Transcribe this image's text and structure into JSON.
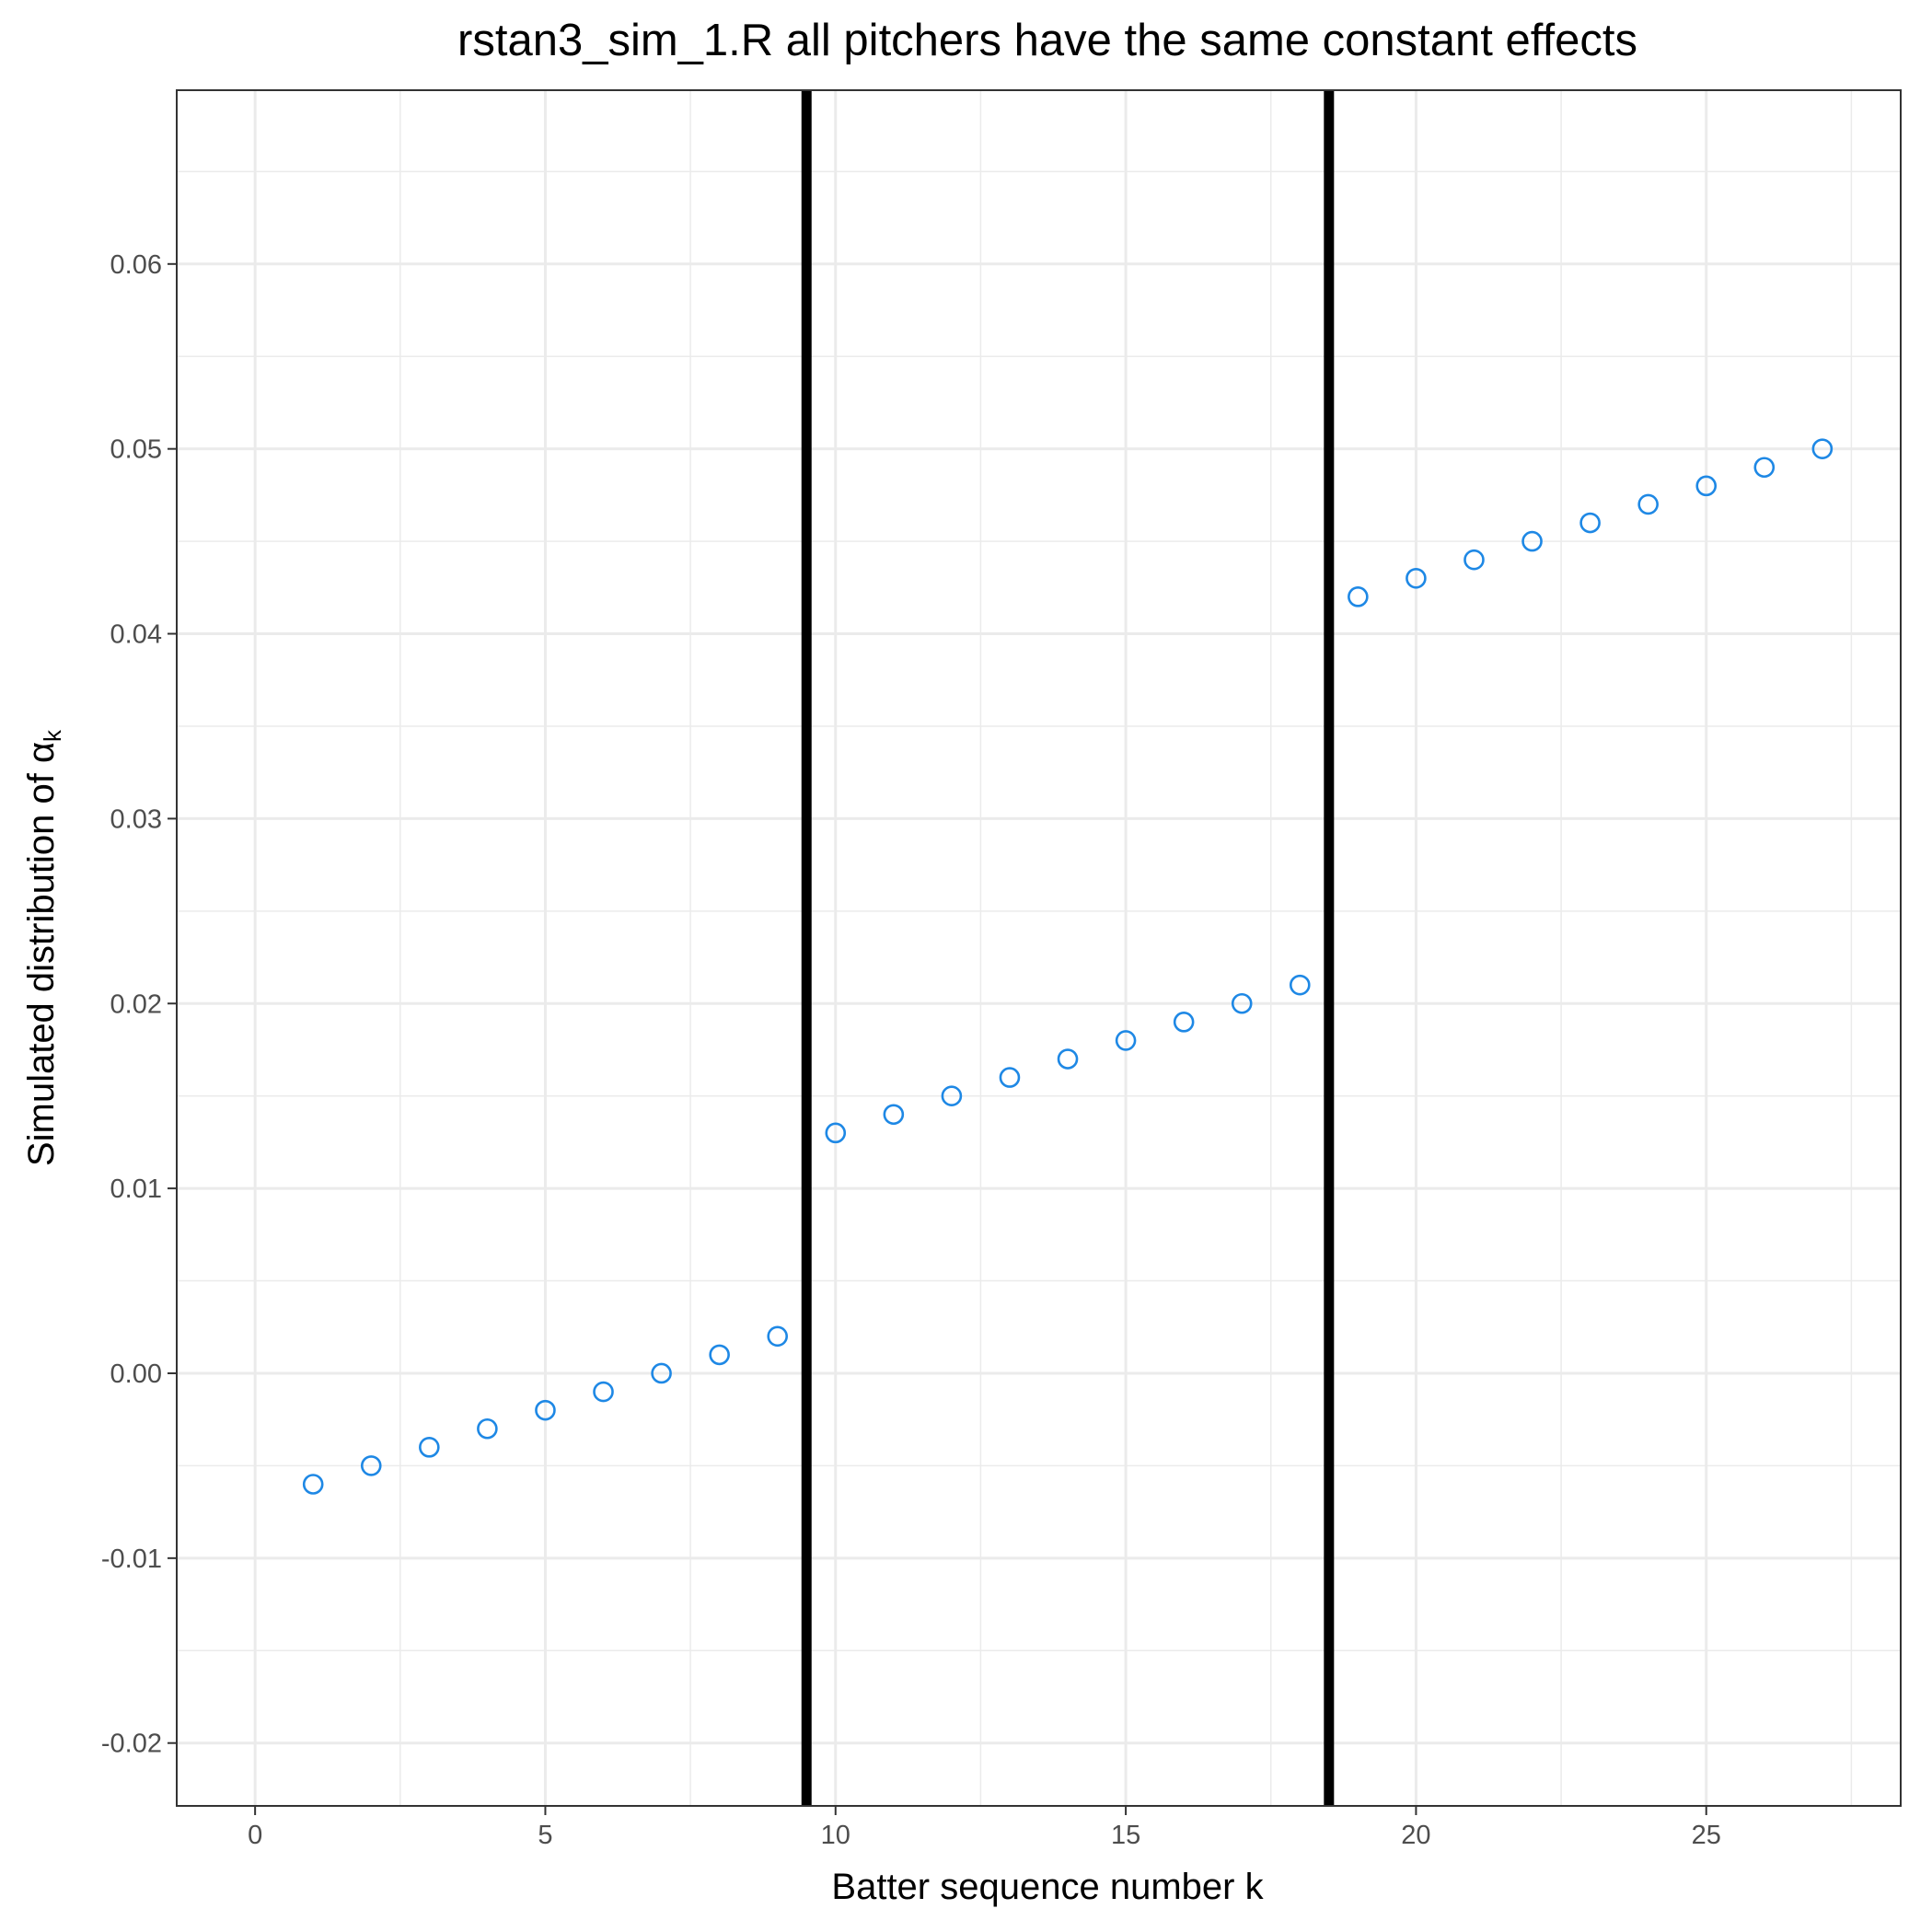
{
  "chart_data": {
    "type": "scatter",
    "title": "rstan3_sim_1.R all pitchers have the same constant effects",
    "xlabel": "Batter sequence number k",
    "ylabel_main": "Simulated distribution of α",
    "ylabel_sub": "k",
    "xlim": [
      -1.35,
      28.35
    ],
    "ylim": [
      -0.0234,
      0.0694
    ],
    "x_ticks": [
      0,
      5,
      10,
      15,
      20,
      25
    ],
    "x_tick_labels": [
      "0",
      "5",
      "10",
      "15",
      "20",
      "25"
    ],
    "y_ticks": [
      -0.02,
      -0.01,
      0.0,
      0.01,
      0.02,
      0.03,
      0.04,
      0.05,
      0.06
    ],
    "y_tick_labels": [
      "-0.02",
      "-0.01",
      "0.00",
      "0.01",
      "0.02",
      "0.03",
      "0.04",
      "0.05",
      "0.06"
    ],
    "grid": true,
    "vlines": [
      9.5,
      18.5
    ],
    "point_color": "#1e88e5",
    "line_color": "#000000",
    "series": [
      {
        "x": [
          1,
          2,
          3,
          4,
          5,
          6,
          7,
          8,
          9,
          10,
          11,
          12,
          13,
          14,
          15,
          16,
          17,
          18,
          19,
          20,
          21,
          22,
          23,
          24,
          25,
          26,
          27
        ],
        "y": [
          -0.006,
          -0.005,
          -0.004,
          -0.003,
          -0.002,
          -0.001,
          0.0,
          0.001,
          0.002,
          0.013,
          0.014,
          0.015,
          0.016,
          0.017,
          0.018,
          0.019,
          0.02,
          0.021,
          0.042,
          0.043,
          0.044,
          0.045,
          0.046,
          0.047,
          0.048,
          0.049,
          0.05
        ]
      }
    ]
  }
}
